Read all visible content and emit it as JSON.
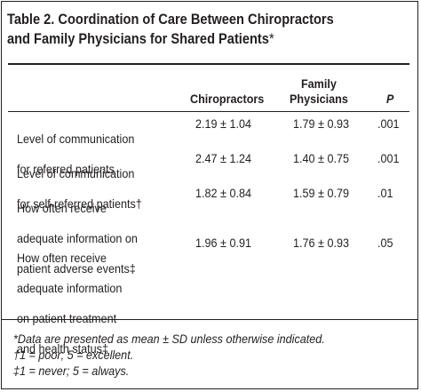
{
  "table": {
    "title_line1": "Table 2. Coordination of Care Between Chiropractors",
    "title_line2": "and Family Physicians for Shared Patients",
    "title_mark": "*",
    "columns": {
      "chiropractors": "Chiropractors",
      "family_line1": "Family",
      "family_line2": "Physicians",
      "p": "P"
    },
    "rows": [
      {
        "label_line1": "Level of communication",
        "label_line2": "for referred patients",
        "label_line3": "",
        "label_line4": "",
        "chiropractors": "2.19 ± 1.04",
        "family": "1.79 ± 0.93",
        "p": ".001"
      },
      {
        "label_line1": "Level of communication",
        "label_line2": "for self-referred patients†",
        "label_line3": "",
        "label_line4": "",
        "chiropractors": "2.47 ± 1.24",
        "family": "1.40 ± 0.75",
        "p": ".001"
      },
      {
        "label_line1": "How often receive",
        "label_line2": "adequate information on",
        "label_line3": "patient adverse events‡",
        "label_line4": "",
        "chiropractors": "1.82 ± 0.84",
        "family": "1.59 ± 0.79",
        "p": ".01"
      },
      {
        "label_line1": "How often receive",
        "label_line2": "adequate information",
        "label_line3": "on patient treatment",
        "label_line4": "and health status‡",
        "chiropractors": "1.96 ± 0.91",
        "family": "1.76 ± 0.93",
        "p": ".05"
      }
    ],
    "footnotes": [
      "*Data are presented as mean ± SD unless otherwise indicated.",
      "†1 = poor; 5 = excellent.",
      "‡1 = never; 5 = always."
    ]
  }
}
